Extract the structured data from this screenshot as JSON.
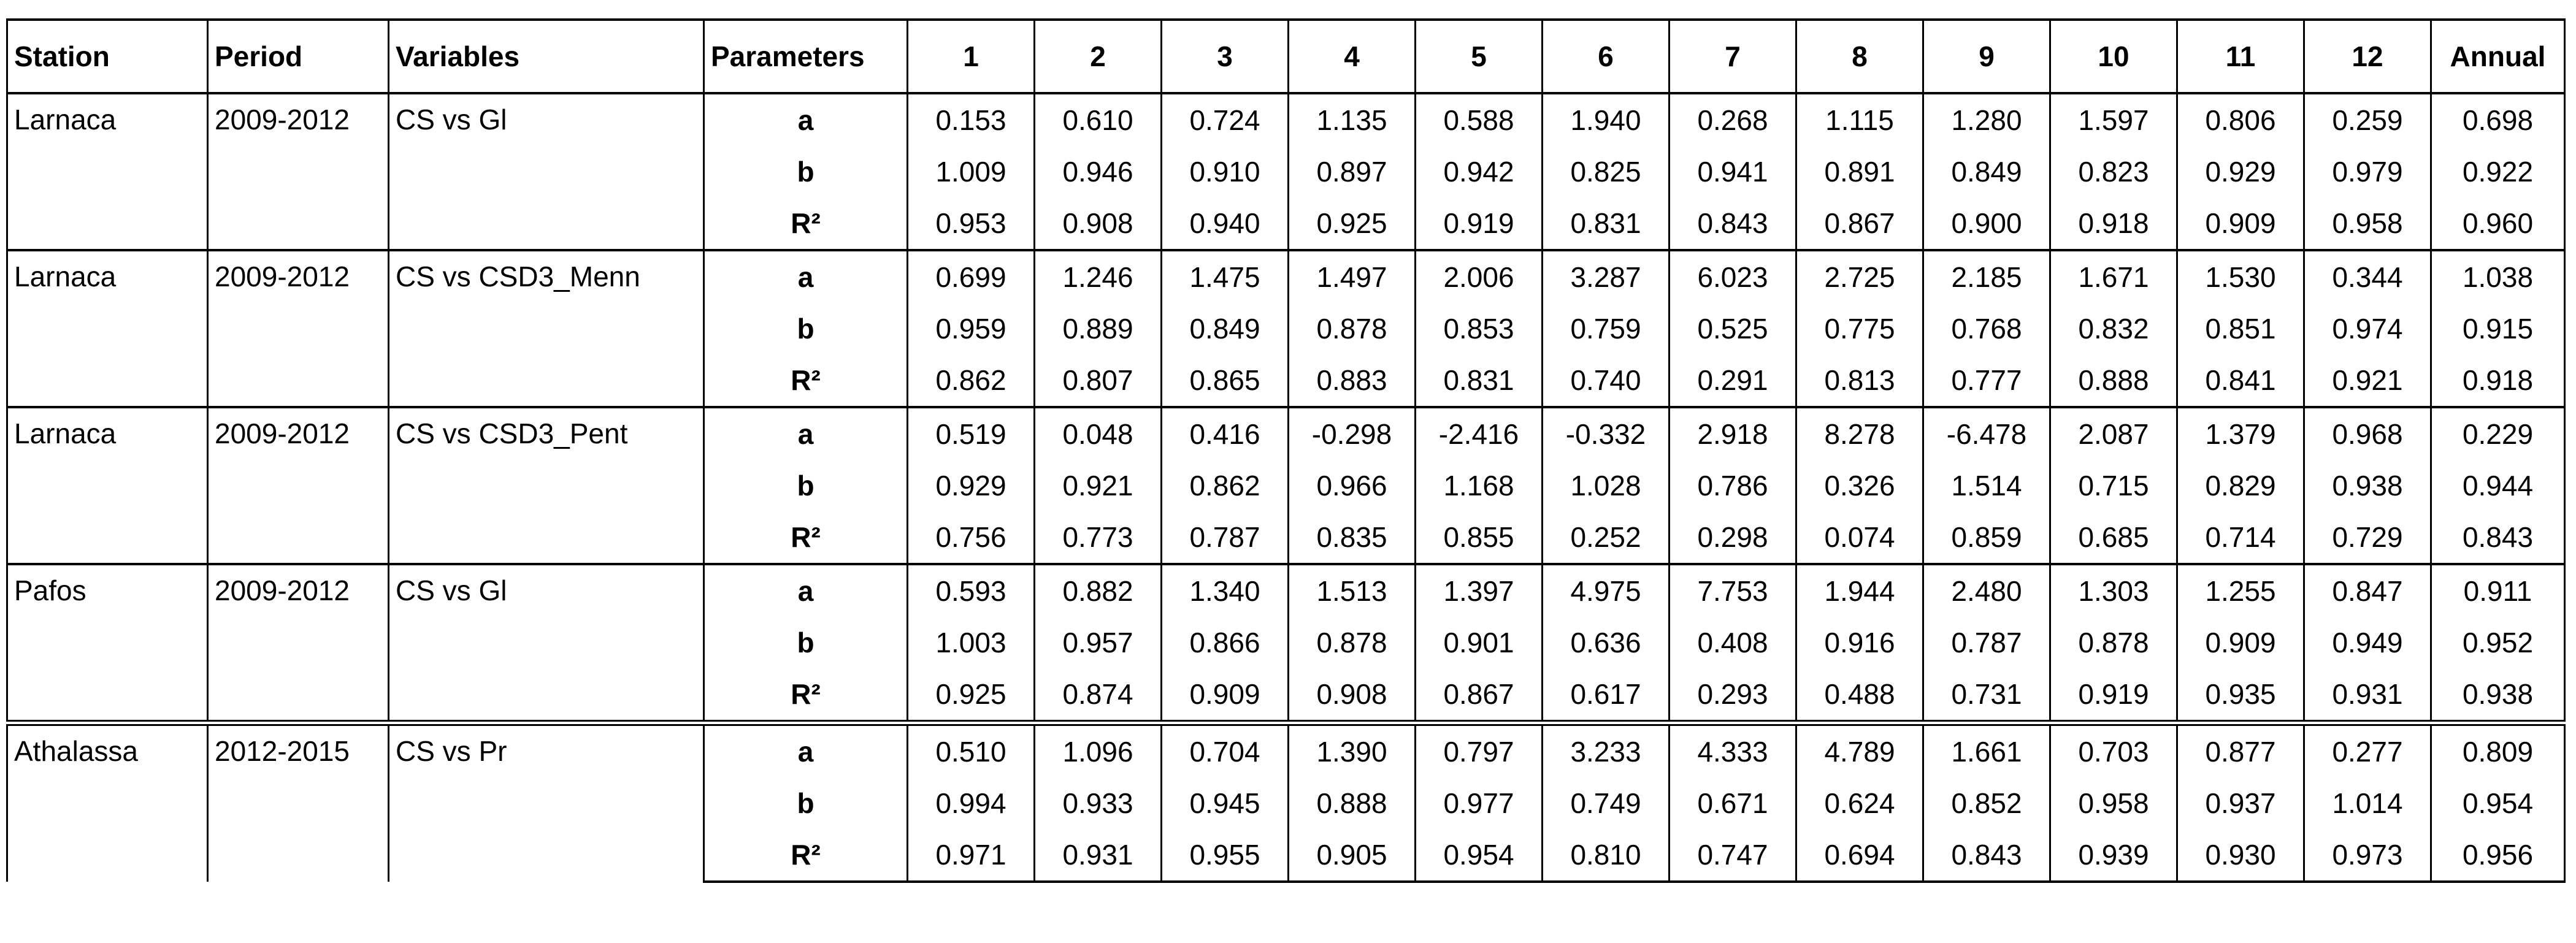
{
  "table": {
    "header": [
      "Station",
      "Period",
      "Variables",
      "Parameters",
      "1",
      "2",
      "3",
      "4",
      "5",
      "6",
      "7",
      "8",
      "9",
      "10",
      "11",
      "12",
      "Annual"
    ],
    "groups": [
      {
        "station": "Larnaca",
        "period": "2009-2012",
        "variables": "CS vs Gl",
        "rows": [
          {
            "parameter": "a",
            "values": [
              "0.153",
              "0.610",
              "0.724",
              "1.135",
              "0.588",
              "1.940",
              "0.268",
              "1.115",
              "1.280",
              "1.597",
              "0.806",
              "0.259",
              "0.698"
            ]
          },
          {
            "parameter": "b",
            "values": [
              "1.009",
              "0.946",
              "0.910",
              "0.897",
              "0.942",
              "0.825",
              "0.941",
              "0.891",
              "0.849",
              "0.823",
              "0.929",
              "0.979",
              "0.922"
            ]
          },
          {
            "parameter": "R²",
            "values": [
              "0.953",
              "0.908",
              "0.940",
              "0.925",
              "0.919",
              "0.831",
              "0.843",
              "0.867",
              "0.900",
              "0.918",
              "0.909",
              "0.958",
              "0.960"
            ]
          }
        ]
      },
      {
        "station": "Larnaca",
        "period": "2009-2012",
        "variables": "CS vs CSD3_Menn",
        "rows": [
          {
            "parameter": "a",
            "values": [
              "0.699",
              "1.246",
              "1.475",
              "1.497",
              "2.006",
              "3.287",
              "6.023",
              "2.725",
              "2.185",
              "1.671",
              "1.530",
              "0.344",
              "1.038"
            ]
          },
          {
            "parameter": "b",
            "values": [
              "0.959",
              "0.889",
              "0.849",
              "0.878",
              "0.853",
              "0.759",
              "0.525",
              "0.775",
              "0.768",
              "0.832",
              "0.851",
              "0.974",
              "0.915"
            ]
          },
          {
            "parameter": "R²",
            "values": [
              "0.862",
              "0.807",
              "0.865",
              "0.883",
              "0.831",
              "0.740",
              "0.291",
              "0.813",
              "0.777",
              "0.888",
              "0.841",
              "0.921",
              "0.918"
            ]
          }
        ]
      },
      {
        "station": "Larnaca",
        "period": "2009-2012",
        "variables": "CS vs CSD3_Pent",
        "rows": [
          {
            "parameter": "a",
            "values": [
              "0.519",
              "0.048",
              "0.416",
              "-0.298",
              "-2.416",
              "-0.332",
              "2.918",
              "8.278",
              "-6.478",
              "2.087",
              "1.379",
              "0.968",
              "0.229"
            ]
          },
          {
            "parameter": "b",
            "values": [
              "0.929",
              "0.921",
              "0.862",
              "0.966",
              "1.168",
              "1.028",
              "0.786",
              "0.326",
              "1.514",
              "0.715",
              "0.829",
              "0.938",
              "0.944"
            ]
          },
          {
            "parameter": "R²",
            "values": [
              "0.756",
              "0.773",
              "0.787",
              "0.835",
              "0.855",
              "0.252",
              "0.298",
              "0.074",
              "0.859",
              "0.685",
              "0.714",
              "0.729",
              "0.843"
            ]
          }
        ]
      },
      {
        "station": "Pafos",
        "period": "2009-2012",
        "variables": "CS vs Gl",
        "rows": [
          {
            "parameter": "a",
            "values": [
              "0.593",
              "0.882",
              "1.340",
              "1.513",
              "1.397",
              "4.975",
              "7.753",
              "1.944",
              "2.480",
              "1.303",
              "1.255",
              "0.847",
              "0.911"
            ]
          },
          {
            "parameter": "b",
            "values": [
              "1.003",
              "0.957",
              "0.866",
              "0.878",
              "0.901",
              "0.636",
              "0.408",
              "0.916",
              "0.787",
              "0.878",
              "0.909",
              "0.949",
              "0.952"
            ]
          },
          {
            "parameter": "R²",
            "values": [
              "0.925",
              "0.874",
              "0.909",
              "0.908",
              "0.867",
              "0.617",
              "0.293",
              "0.488",
              "0.731",
              "0.919",
              "0.935",
              "0.931",
              "0.938"
            ]
          }
        ]
      },
      {
        "station": "Athalassa",
        "period": "2012-2015",
        "variables": "CS vs Pr",
        "rows": [
          {
            "parameter": "a",
            "values": [
              "0.510",
              "1.096",
              "0.704",
              "1.390",
              "0.797",
              "3.233",
              "4.333",
              "4.789",
              "1.661",
              "0.703",
              "0.877",
              "0.277",
              "0.809"
            ]
          },
          {
            "parameter": "b",
            "values": [
              "0.994",
              "0.933",
              "0.945",
              "0.888",
              "0.977",
              "0.749",
              "0.671",
              "0.624",
              "0.852",
              "0.958",
              "0.937",
              "1.014",
              "0.954"
            ]
          },
          {
            "parameter": "R²",
            "values": [
              "0.971",
              "0.931",
              "0.955",
              "0.905",
              "0.954",
              "0.810",
              "0.747",
              "0.694",
              "0.843",
              "0.939",
              "0.930",
              "0.973",
              "0.956"
            ]
          }
        ]
      }
    ]
  }
}
